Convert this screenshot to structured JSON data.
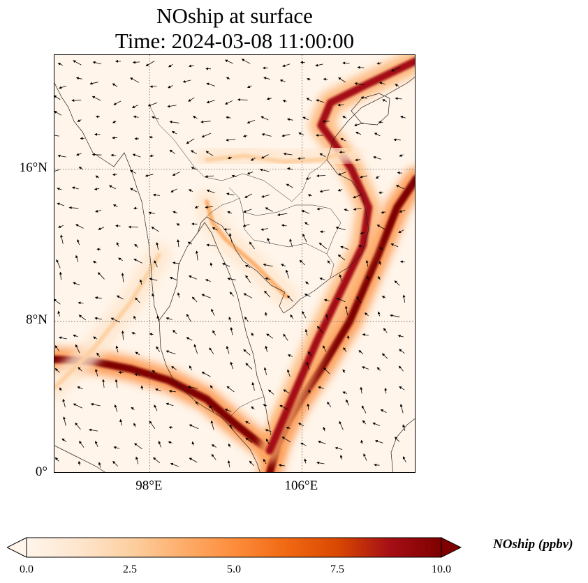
{
  "title": {
    "line1": "NOship at surface",
    "line2": "Time: 2024-03-08 11:00:00"
  },
  "map": {
    "lon_range": [
      93,
      112
    ],
    "lat_range": [
      0,
      22
    ],
    "lat_ticks": [
      {
        "value": 0,
        "label": "0°"
      },
      {
        "value": 8,
        "label": "8°N"
      },
      {
        "value": 16,
        "label": "16°N"
      }
    ],
    "lon_ticks": [
      {
        "value": 98,
        "label": "98°E"
      },
      {
        "value": 106,
        "label": "106°E"
      }
    ],
    "gridlines": "dotted",
    "shipping_lanes": [
      {
        "name": "strait-of-malacca-lane",
        "concentration": 10,
        "points": [
          [
            93,
            6
          ],
          [
            95,
            5.9
          ],
          [
            97,
            5.5
          ],
          [
            99,
            4.9
          ],
          [
            101,
            3.9
          ],
          [
            102.5,
            2.6
          ],
          [
            103.5,
            1.8
          ],
          [
            104.3,
            1.2
          ]
        ]
      },
      {
        "name": "singapore-to-vietnam-lane",
        "concentration": 10,
        "points": [
          [
            104.3,
            0
          ],
          [
            104.7,
            1.5
          ],
          [
            105.3,
            2.8
          ],
          [
            106,
            4
          ],
          [
            107,
            5.5
          ],
          [
            108.5,
            8
          ],
          [
            110,
            11.5
          ],
          [
            111,
            14
          ],
          [
            112,
            15.5
          ]
        ]
      },
      {
        "name": "vietnam-coastal-lane",
        "concentration": 9,
        "points": [
          [
            104.3,
            1.2
          ],
          [
            105.5,
            4
          ],
          [
            106.8,
            7
          ],
          [
            108,
            9.5
          ],
          [
            109.2,
            12
          ],
          [
            109.5,
            14
          ],
          [
            108.6,
            16
          ],
          [
            107.6,
            17.5
          ],
          [
            107,
            18.3
          ],
          [
            107.5,
            19.5
          ],
          [
            109.5,
            20.5
          ],
          [
            112,
            21.7
          ]
        ]
      },
      {
        "name": "gulf-of-thailand-lane",
        "concentration": 4,
        "points": [
          [
            101,
            14.3
          ],
          [
            101.3,
            13.2
          ],
          [
            102,
            12.3
          ],
          [
            103.5,
            11
          ],
          [
            105.2,
            9.3
          ]
        ]
      },
      {
        "name": "andaman-lane",
        "concentration": 3,
        "points": [
          [
            93,
            4.5
          ],
          [
            95,
            6.5
          ],
          [
            97,
            9
          ],
          [
            98.5,
            11.5
          ]
        ]
      },
      {
        "name": "inland-plume",
        "concentration": 3,
        "points": [
          [
            101,
            16.5
          ],
          [
            103,
            16.7
          ],
          [
            105,
            16.4
          ],
          [
            107,
            16.5
          ],
          [
            108.5,
            17
          ]
        ]
      }
    ]
  },
  "colorbar": {
    "label": "NOship (ppbv)",
    "min": 0,
    "max": 10,
    "extend": "both",
    "ticks": [
      "0.0",
      "2.5",
      "5.0",
      "7.5",
      "10.0"
    ],
    "colors": [
      "#fff5eb",
      "#fee6ce",
      "#fdd0a2",
      "#fdae6b",
      "#fd8d3c",
      "#f16913",
      "#d94801",
      "#a50f15",
      "#7f0000"
    ]
  }
}
